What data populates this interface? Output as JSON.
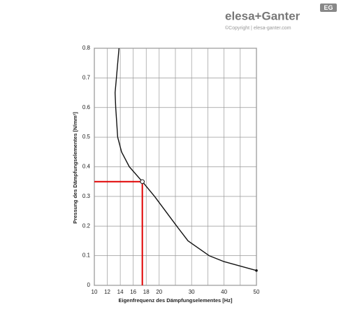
{
  "header": {
    "brand": "elesa+Ganter",
    "copyright": "©Copyright | elesa-ganter.com",
    "badge": "EG"
  },
  "chart_data": {
    "type": "line",
    "x_label": "Eigenfrequenz des Dämpfungselementes [Hz]",
    "y_label": "Pressung des Dämpfungselementes [N/mm²]",
    "x": [
      13.8,
      13.4,
      13.2,
      13.3,
      13.6,
      14.2,
      15.4,
      17.4,
      19.3,
      25.4,
      28.9,
      35.4,
      40,
      50
    ],
    "series": [
      {
        "color": "#111111",
        "values": [
          0.8,
          0.7,
          0.65,
          0.6,
          0.5,
          0.45,
          0.4,
          0.35,
          0.3,
          0.2,
          0.15,
          0.1,
          0.08,
          0.05
        ]
      }
    ],
    "highlight": {
      "x": 17.4,
      "y": 0.35,
      "color": "#e00000"
    },
    "xlim": [
      10,
      50
    ],
    "xticks": [
      10,
      12,
      14,
      16,
      18,
      20,
      30,
      40,
      50
    ],
    "ylim": [
      0,
      0.8
    ],
    "yticks": [
      0,
      0.1,
      0.2,
      0.3,
      0.4,
      0.5,
      0.6,
      0.7,
      0.8
    ],
    "grid": true
  }
}
